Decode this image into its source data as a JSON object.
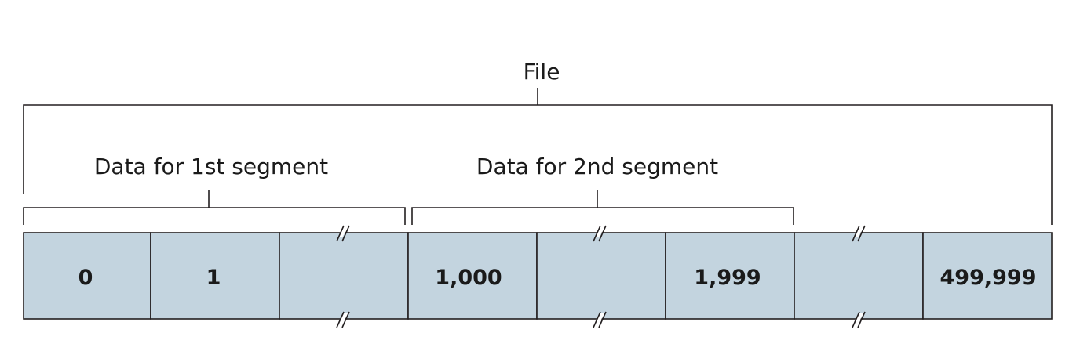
{
  "file_label": "File",
  "segment1_label": "Data for 1st segment",
  "segment2_label": "Data for 2nd segment",
  "bytes": [
    {
      "label": "0"
    },
    {
      "label": "1"
    },
    {
      "label": ""
    },
    {
      "label": "1,000"
    },
    {
      "label": ""
    },
    {
      "label": "1,999"
    },
    {
      "label": ""
    },
    {
      "label": "499,999"
    }
  ],
  "colors": {
    "cell_fill": "#c3d4df",
    "line": "#231f20",
    "text": "#1a1a1a"
  }
}
